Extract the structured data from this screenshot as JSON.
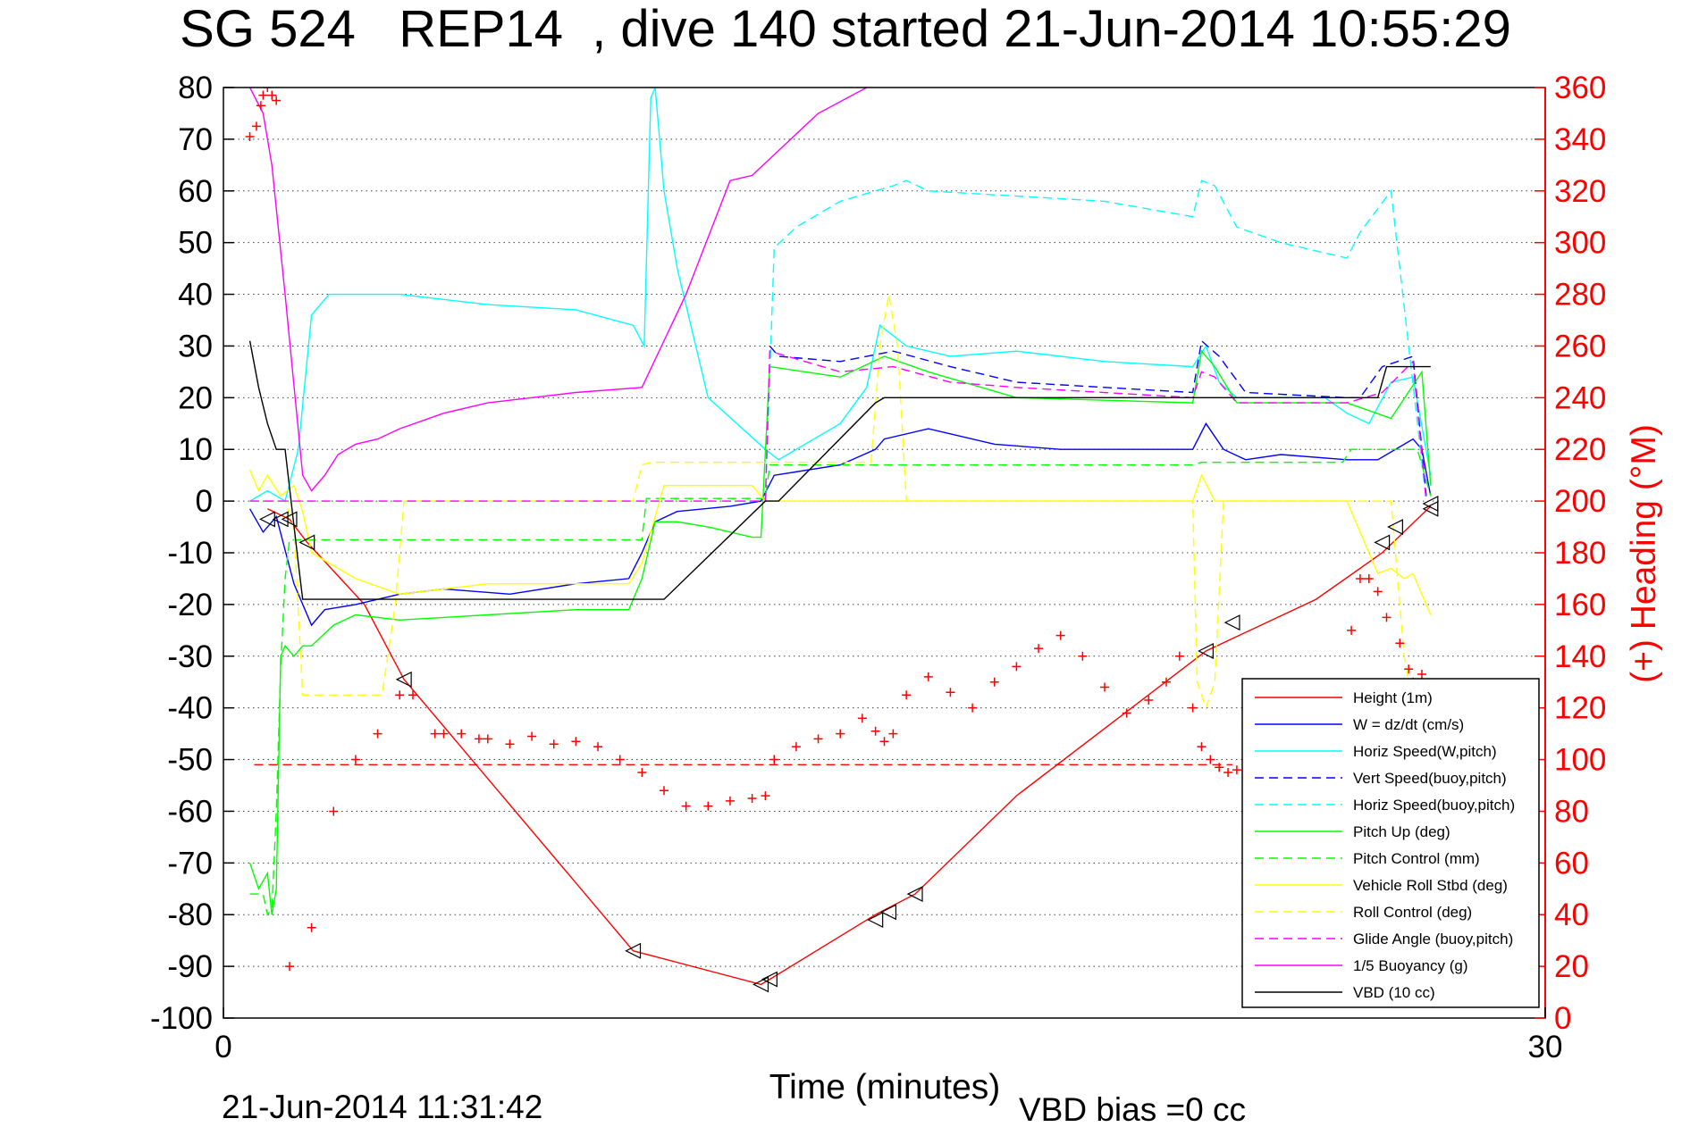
{
  "title": "SG 524   REP14  , dive 140 started 21-Jun-2014 10:55:29",
  "footer": {
    "timestamp": "21-Jun-2014 11:31:42",
    "vbd_bias": "VBD bias =0 cc"
  },
  "chart_data": {
    "type": "line",
    "title": "SG 524   REP14  , dive 140 started 21-Jun-2014 10:55:29",
    "xlabel": "Time (minutes)",
    "ylabel": "",
    "ylabel_right": "(+) Heading (°M)",
    "xlim": [
      0,
      30
    ],
    "ylim": [
      -100,
      80
    ],
    "ylim_right": [
      0,
      360
    ],
    "xticks": [
      "0",
      "30"
    ],
    "yticks": [
      "80",
      "70",
      "60",
      "50",
      "40",
      "30",
      "20",
      "10",
      "0",
      "-10",
      "-20",
      "-30",
      "-40",
      "-50",
      "-60",
      "-70",
      "-80",
      "-90",
      "-100"
    ],
    "yticks_right": [
      "360",
      "340",
      "320",
      "300",
      "280",
      "260",
      "240",
      "220",
      "200",
      "180",
      "160",
      "140",
      "120",
      "100",
      "80",
      "60",
      "40",
      "20",
      "0"
    ],
    "grid": "y-dotted",
    "legend_position": "bottom-right",
    "colors": {
      "height": "#ff0000",
      "w": "#0000ff",
      "horiz_w": "#00ffff",
      "vert_buoy": "#0000ff",
      "horiz_buoy": "#00ffff",
      "pitch": "#00ff00",
      "pitch_ctl": "#00ff00",
      "roll": "#ffff00",
      "roll_ctl": "#ffff00",
      "glide": "#ff00ff",
      "buoy": "#ff00ff",
      "vbd": "#000000",
      "heading": "#ff0000"
    },
    "series": [
      {
        "key": "height",
        "name": "Height (1m)",
        "style": "solid",
        "x": [
          1.0,
          1.5,
          1.9,
          3.2,
          4.1,
          9.3,
          12.2,
          12.4,
          14.8,
          15.7,
          18.0,
          22.3,
          24.8,
          26.3,
          27.4
        ],
        "y": [
          -1.5,
          -3.5,
          -8,
          -20,
          -34.5,
          -87,
          -93.5,
          -92.5,
          -80,
          -76,
          -57,
          -29,
          -19,
          -10,
          -1
        ]
      },
      {
        "key": "w",
        "name": "W = dz/dt (cm/s)",
        "style": "solid",
        "x": [
          0.6,
          0.9,
          1.2,
          1.6,
          2.0,
          2.3,
          3.0,
          4.0,
          5.0,
          6.5,
          8.0,
          9.2,
          9.5,
          9.8,
          10.3,
          11.5,
          12.2,
          12.5,
          14.0,
          14.8,
          15.0,
          16.0,
          17.5,
          19.0,
          22.0,
          22.3,
          22.7,
          23.2,
          24.0,
          25.5,
          26.2,
          27.0,
          27.2,
          27.4
        ],
        "y": [
          -1.5,
          -6,
          -3,
          -16,
          -24,
          -21,
          -20,
          -18,
          -17,
          -18,
          -16,
          -15,
          -10,
          -4,
          -2,
          -1,
          0,
          5,
          7,
          10,
          12,
          14,
          11,
          10,
          10,
          15,
          10,
          8,
          9,
          8,
          8,
          12,
          10,
          1
        ]
      },
      {
        "key": "horiz_w",
        "name": "Horiz Speed(W,pitch)",
        "style": "solid",
        "x": [
          0.6,
          1.0,
          1.4,
          1.7,
          2.0,
          2.4,
          3.0,
          4.0,
          6.0,
          8.0,
          9.3,
          9.55,
          9.7,
          9.8,
          10.0,
          10.3,
          11.0,
          12.3,
          12.6,
          13.0,
          14.0,
          14.6,
          14.9,
          15.5,
          16.5,
          18.0,
          20.0,
          22.0,
          22.3,
          22.6,
          23.0,
          25.0,
          25.5,
          26.0,
          26.5,
          27.0,
          27.4
        ],
        "y": [
          0,
          2,
          0,
          10,
          36,
          40,
          40,
          40,
          38,
          37,
          34,
          30,
          78,
          80,
          60,
          45,
          20,
          10,
          8,
          10,
          15,
          22,
          34,
          30,
          28,
          29,
          27,
          26,
          30,
          23,
          20,
          20,
          17,
          15,
          23,
          24,
          5
        ]
      },
      {
        "key": "vert_buoy",
        "name": "Vert Speed(buoy,pitch)",
        "style": "dash",
        "x": [
          12.4,
          12.6,
          14.0,
          15.2,
          16.5,
          18.0,
          20.0,
          22.0,
          22.2,
          22.6,
          23.2,
          25.5,
          25.8,
          26.3,
          27.0,
          27.3
        ],
        "y": [
          30,
          28,
          27,
          29,
          26,
          23,
          22,
          21,
          31,
          28,
          21,
          20,
          20,
          26,
          28,
          1
        ]
      },
      {
        "key": "horiz_buoy",
        "name": "Horiz Speed(buoy,pitch)",
        "style": "dash",
        "x": [
          12.3,
          12.5,
          13.0,
          14.0,
          15.2,
          15.5,
          16.0,
          18.0,
          20.0,
          22.0,
          22.2,
          22.5,
          23.0,
          24.0,
          25.5,
          25.8,
          26.5,
          27.3
        ],
        "y": [
          0,
          49,
          53,
          58,
          61,
          62,
          60,
          59,
          58,
          55,
          62,
          61,
          53,
          50,
          47,
          52,
          60,
          0
        ]
      },
      {
        "key": "pitch",
        "name": "Pitch Up (deg)",
        "style": "solid",
        "x": [
          0.6,
          0.8,
          1.0,
          1.1,
          1.2,
          1.3,
          1.4,
          1.6,
          1.8,
          2.0,
          2.5,
          3.0,
          4.0,
          6.0,
          8.0,
          9.2,
          9.5,
          9.8,
          10.3,
          11.0,
          12.0,
          12.2,
          12.4,
          14.0,
          15.0,
          16.0,
          18.0,
          22.0,
          22.2,
          22.5,
          23.0,
          25.5,
          26.5,
          27.2,
          27.4
        ],
        "y": [
          -70,
          -75,
          -72,
          -80,
          -75,
          -30,
          -28,
          -30,
          -28,
          -28,
          -24,
          -22,
          -23,
          -22,
          -21,
          -21,
          -15,
          -4,
          -4,
          -5,
          -7,
          -7,
          26,
          24,
          28,
          25,
          20,
          19,
          29,
          26,
          19,
          19,
          16,
          25,
          3
        ]
      },
      {
        "key": "pitch_ctl",
        "name": "Pitch Control (mm)",
        "style": "dash",
        "x": [
          0.6,
          0.9,
          1.0,
          1.1,
          1.2,
          1.3,
          1.4,
          1.5,
          1.7,
          2.0,
          9.5,
          9.6,
          12.3,
          12.4,
          22.0,
          22.2,
          25.4,
          25.6,
          27.1,
          27.4
        ],
        "y": [
          -76,
          -76,
          -80,
          -79,
          -60,
          -32,
          -15,
          -7.5,
          -7.5,
          -7.5,
          -7.5,
          0.5,
          0.5,
          7,
          7,
          7.5,
          7.5,
          10,
          10,
          1
        ]
      },
      {
        "key": "roll",
        "name": "Vehicle Roll Stbd (deg)",
        "style": "solid",
        "x": [
          0.6,
          0.8,
          1.0,
          1.3,
          1.6,
          1.8,
          2.0,
          3.0,
          4.0,
          5.0,
          6.0,
          9.2,
          9.5,
          10.0,
          12.0,
          12.3,
          15.0,
          22.0,
          22.2,
          22.5,
          25.5,
          26.2,
          26.5,
          26.8,
          27.0,
          27.4
        ],
        "y": [
          6,
          2,
          5,
          1,
          3,
          -2,
          -10,
          -15,
          -18,
          -17,
          -16,
          -16,
          -12,
          3,
          3,
          0,
          0,
          0,
          5,
          0,
          0,
          -14,
          -13,
          -15,
          -14,
          -22
        ]
      },
      {
        "key": "roll_ctl",
        "name": "Roll Control (deg)",
        "style": "dash",
        "x": [
          0.6,
          1.4,
          1.6,
          1.8,
          2.0,
          3.6,
          3.9,
          4.1,
          4.4,
          9.3,
          9.5,
          9.7,
          14.7,
          14.9,
          15.1,
          15.3,
          15.5,
          22.0,
          22.1,
          22.3,
          22.5,
          22.7,
          26.5,
          26.6,
          26.8,
          27.0
        ],
        "y": [
          0,
          0,
          -5,
          -37.5,
          -37.5,
          -37.5,
          -20,
          0,
          0,
          0,
          7,
          7.5,
          7.5,
          30,
          40,
          30,
          0,
          0,
          -35,
          -40,
          -35,
          0,
          0,
          -10,
          -30,
          -40
        ]
      },
      {
        "key": "glide",
        "name": "Glide Angle (buoy,pitch)",
        "style": "dash",
        "x": [
          0.6,
          12.3,
          12.4,
          14.0,
          15.2,
          16.5,
          18.0,
          22.0,
          22.2,
          22.5,
          23.0,
          25.5,
          26.3,
          27.0,
          27.3
        ],
        "y": [
          0,
          0,
          29,
          25,
          26,
          23,
          22,
          20,
          25,
          24,
          19,
          19,
          21,
          27,
          0
        ]
      },
      {
        "key": "buoy",
        "name": "1/5 Buoyancy (g)",
        "style": "solid",
        "x": [
          0.6,
          0.9,
          1.1,
          1.4,
          1.8,
          2.0,
          2.3,
          2.6,
          3.0,
          3.5,
          4.0,
          5.0,
          6.0,
          7.0,
          8.0,
          9.5,
          10.5,
          11.5,
          12.0,
          13.5,
          14.6
        ],
        "y": [
          80,
          75,
          65,
          40,
          5,
          2,
          5,
          9,
          11,
          12,
          14,
          17,
          19,
          20,
          21,
          22,
          40,
          62,
          63,
          75,
          80
        ]
      },
      {
        "key": "vbd",
        "name": "VBD (10 cc)",
        "style": "solid",
        "x": [
          0.6,
          0.8,
          1.0,
          1.2,
          1.4,
          1.7,
          1.8,
          9.6,
          10.0,
          12.3,
          12.6,
          14.8,
          15.0,
          22.1,
          26.2,
          26.4,
          27.4
        ],
        "y": [
          31,
          22,
          15,
          10,
          10,
          -12,
          -19,
          -19,
          -19,
          0,
          0,
          19,
          20,
          20,
          20,
          26,
          26
        ]
      },
      {
        "key": "heading",
        "name": "",
        "style": "plus",
        "axis": "right",
        "x": [
          0.6,
          0.75,
          0.85,
          0.9,
          1.0,
          1.1,
          1.2,
          1.5,
          2.0,
          2.5,
          3.0,
          3.5,
          4.0,
          4.3,
          4.8,
          5.0,
          5.4,
          5.8,
          6.0,
          6.5,
          7.0,
          7.5,
          8.0,
          8.5,
          9.0,
          9.5,
          10.0,
          10.5,
          11.0,
          11.5,
          12.0,
          12.3,
          12.5,
          13.0,
          13.5,
          14.0,
          14.5,
          14.8,
          15.0,
          15.2,
          15.5,
          16.0,
          16.5,
          17.0,
          17.5,
          18.0,
          18.5,
          19.0,
          19.5,
          20.0,
          20.5,
          21.0,
          21.4,
          21.7,
          22.0,
          22.2,
          22.4,
          22.6,
          22.8,
          23.0,
          25.6,
          25.8,
          26.0,
          26.2,
          26.4,
          26.7,
          26.9,
          27.0,
          27.2
        ],
        "y": [
          341,
          345,
          353,
          357,
          360,
          357,
          355,
          20,
          35,
          80,
          100,
          110,
          125,
          125,
          110,
          110,
          110,
          108,
          108,
          106,
          109,
          106,
          107,
          105,
          100,
          95,
          88,
          82,
          82,
          84,
          85,
          86,
          100,
          105,
          108,
          110,
          116,
          111,
          107,
          110,
          125,
          132,
          126,
          120,
          130,
          136,
          143,
          148,
          140,
          128,
          118,
          123,
          130,
          140,
          120,
          105,
          100,
          97,
          95,
          96,
          150,
          170,
          170,
          165,
          155,
          145,
          135,
          130,
          133
        ]
      },
      {
        "key": "heading_target",
        "name": "",
        "style": "dash",
        "axis": "right",
        "x": [
          0.7,
          22.9
        ],
        "y": [
          98,
          98
        ]
      }
    ],
    "markers": {
      "name": "",
      "x": [
        1.0,
        1.3,
        1.5,
        1.9,
        4.1,
        9.3,
        12.2,
        12.4,
        14.8,
        15.1,
        15.7,
        22.3,
        22.9,
        26.3,
        26.6,
        27.4,
        27.4
      ],
      "y": [
        -3.5,
        -3.5,
        -3.5,
        -8,
        -34.5,
        -87,
        -93.5,
        -92.5,
        -81,
        -79.5,
        -76,
        -29,
        -23.5,
        -8,
        -5,
        -0.5,
        -1.5
      ]
    }
  }
}
